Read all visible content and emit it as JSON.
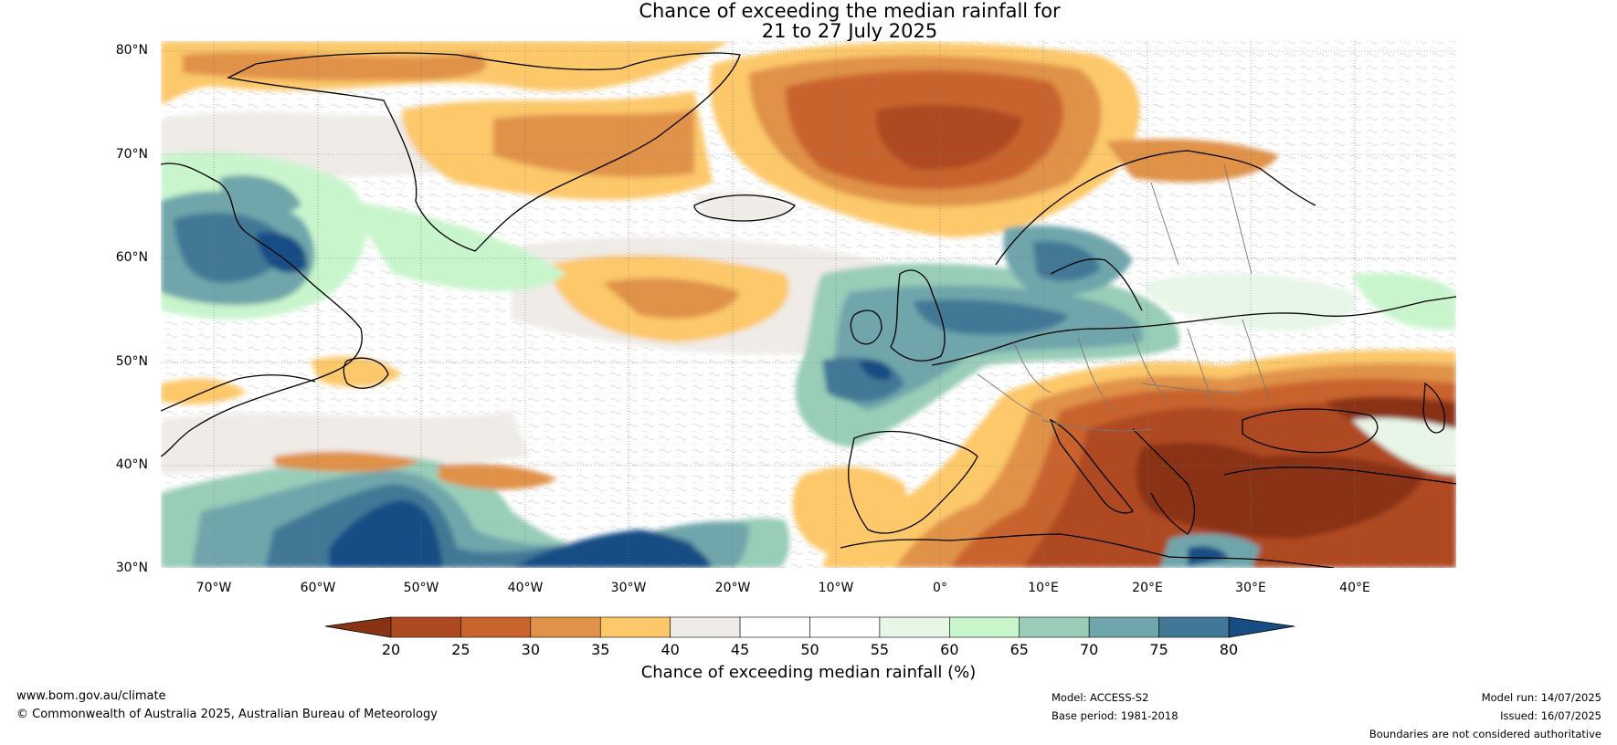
{
  "title_line1": "Chance of exceeding the median rainfall for",
  "title_line2": "21 to 27 July 2025",
  "lat_labels": [
    "80°N",
    "70°N",
    "60°N",
    "50°N",
    "40°N",
    "30°N"
  ],
  "lon_labels": [
    "70°W",
    "60°W",
    "50°W",
    "40°W",
    "30°W",
    "20°W",
    "10°W",
    "0°",
    "10°E",
    "20°E",
    "30°E",
    "40°E"
  ],
  "colorbar": {
    "label": "Chance of exceeding median rainfall (%)",
    "ticks": [
      "20",
      "25",
      "30",
      "35",
      "40",
      "45",
      "50",
      "55",
      "60",
      "65",
      "70",
      "75",
      "80"
    ],
    "colors": [
      "#8a3214",
      "#ae4a22",
      "#c9642e",
      "#e0924a",
      "#fcc86a",
      "#efebe7",
      "#ffffff",
      "#ffffff",
      "#e8f6e8",
      "#c8f5cc",
      "#98cdb8",
      "#6fa6ab",
      "#427896",
      "#174d84"
    ]
  },
  "footer": {
    "site": "www.bom.gov.au/climate",
    "copyright": "© Commonwealth of Australia 2025, Australian Bureau of Meteorology",
    "model": "Model: ACCESS-S2",
    "base_period": "Base period: 1981-2018",
    "model_run": "Model run: 14/07/2025",
    "issued": "Issued: 16/07/2025",
    "disclaimer": "Boundaries are not considered authoritative"
  }
}
